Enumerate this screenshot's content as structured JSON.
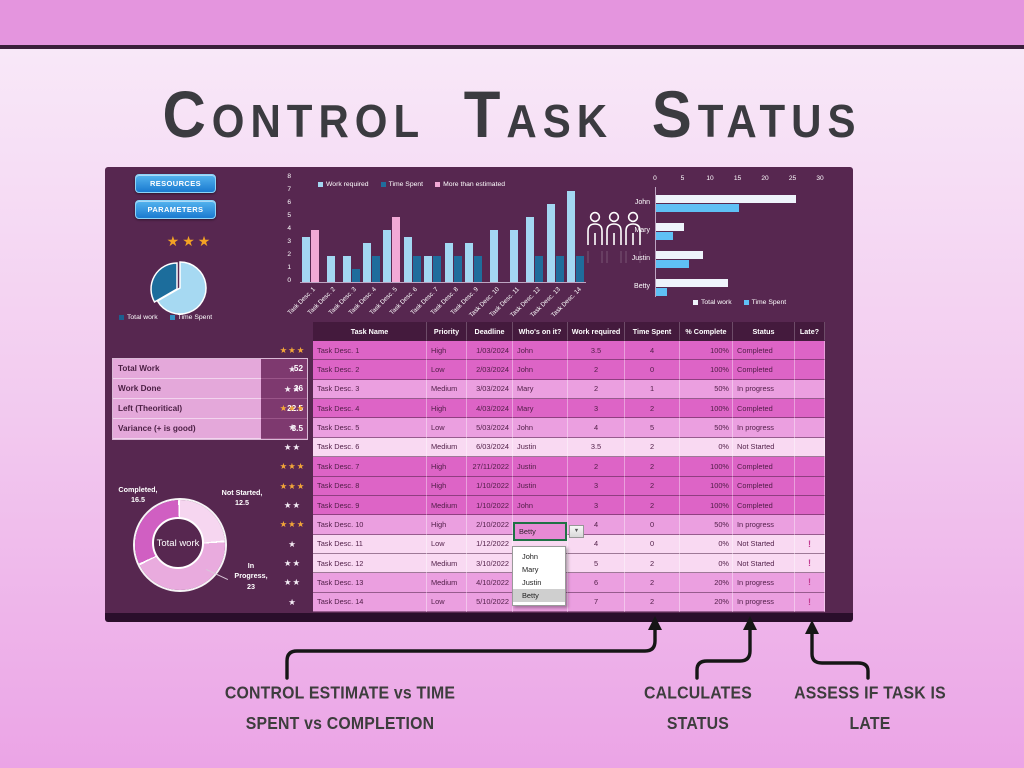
{
  "title": "Control Task Status",
  "buttons": {
    "resources": "RESOURCES",
    "parameters": "PARAMETERS"
  },
  "rating": {
    "stars": "★★★"
  },
  "status_colors": {
    "Completed": "#dd64c6",
    "In progress": "#eb9fe0",
    "Not Started": "#f9d9f2"
  },
  "late_mark": "!",
  "chart_data": [
    {
      "type": "pie",
      "name": "work-vs-time-pie",
      "labels": [
        "Total work",
        "Time Spent"
      ],
      "values": [
        52,
        26
      ],
      "slice_colors": [
        "#a6d9f2",
        "#1c6d9c"
      ],
      "legend": [
        {
          "label": "Total work",
          "color": "#1c5f8f"
        },
        {
          "label": "Time Spent",
          "color": "#3390c3"
        }
      ]
    },
    {
      "type": "bar",
      "name": "task-bars",
      "ylim": [
        0,
        8
      ],
      "yticks": [
        0,
        1,
        2,
        3,
        4,
        5,
        6,
        7,
        8
      ],
      "categories": [
        "Task Desc. 1",
        "Task Desc. 2",
        "Task Desc. 3",
        "Task Desc. 4",
        "Task Desc. 5",
        "Task Desc. 6",
        "Task Desc. 7",
        "Task Desc. 8",
        "Task Desc. 9",
        "Task Desc. 10",
        "Task Desc. 11",
        "Task Desc. 12",
        "Task Desc. 13",
        "Task Desc. 14"
      ],
      "series": [
        {
          "name": "Work required",
          "color": "#a3d7f2",
          "values": [
            3.5,
            2,
            2,
            3,
            4,
            3.5,
            2,
            3,
            3,
            4,
            4,
            5,
            6,
            7
          ]
        },
        {
          "name": "Time Spent",
          "color": "#1f6d9c",
          "values": [
            4,
            0,
            1,
            2,
            5,
            2,
            2,
            2,
            2,
            0,
            0,
            2,
            2,
            2
          ]
        },
        {
          "name": "More than estimated",
          "color": "#f2a9d6",
          "note": "time-spent bar shown pink when it exceeds work required"
        }
      ]
    },
    {
      "type": "bar",
      "name": "person-bars",
      "orientation": "horizontal",
      "xlim": [
        0,
        30
      ],
      "xticks": [
        0,
        5,
        10,
        15,
        20,
        25,
        30
      ],
      "categories": [
        "John",
        "Mary",
        "Justin",
        "Betty"
      ],
      "series": [
        {
          "name": "Total work",
          "color": "#eef3fb",
          "values": [
            25.5,
            5,
            8.5,
            13
          ]
        },
        {
          "name": "Time Spent",
          "color": "#5fc0f5",
          "values": [
            15,
            3,
            6,
            2
          ]
        }
      ]
    },
    {
      "type": "pie",
      "subtype": "donut",
      "name": "total-work-donut",
      "center_label": "Total work",
      "labels": [
        "Not Started",
        "In Progress",
        "Completed"
      ],
      "values": [
        12.5,
        23,
        16.5
      ],
      "slice_colors": [
        "#f6d6f0",
        "#e9abde",
        "#d05fc2"
      ],
      "callouts": {
        "completed": [
          "Completed,",
          "16.5"
        ],
        "not_started": [
          "Not Started,",
          "12.5"
        ],
        "in_progress": [
          "In",
          "Progress,",
          "23"
        ]
      }
    }
  ],
  "stats": {
    "rows": [
      {
        "label": "Total Work",
        "value": "52"
      },
      {
        "label": "Work Done",
        "value": "26"
      },
      {
        "label": "Left (Theoritical)",
        "value": "22.5"
      },
      {
        "label": "Variance (+ is good)",
        "value": "3.5"
      }
    ]
  },
  "table": {
    "headers": [
      "Task Name",
      "Priority",
      "Deadline",
      "Who's on it?",
      "Work required",
      "Time Spent",
      "% Complete",
      "Status",
      "Late?"
    ],
    "rows": [
      [
        "Task Desc. 1",
        "High",
        "1/03/2024",
        "John",
        "3.5",
        "4",
        "100%",
        "Completed",
        ""
      ],
      [
        "Task Desc. 2",
        "Low",
        "2/03/2024",
        "John",
        "2",
        "0",
        "100%",
        "Completed",
        ""
      ],
      [
        "Task Desc. 3",
        "Medium",
        "3/03/2024",
        "Mary",
        "2",
        "1",
        "50%",
        "In progress",
        ""
      ],
      [
        "Task Desc. 4",
        "High",
        "4/03/2024",
        "Mary",
        "3",
        "2",
        "100%",
        "Completed",
        ""
      ],
      [
        "Task Desc. 5",
        "Low",
        "5/03/2024",
        "John",
        "4",
        "5",
        "50%",
        "In progress",
        ""
      ],
      [
        "Task Desc. 6",
        "Medium",
        "6/03/2024",
        "Justin",
        "3.5",
        "2",
        "0%",
        "Not Started",
        ""
      ],
      [
        "Task Desc. 7",
        "High",
        "27/11/2022",
        "Justin",
        "2",
        "2",
        "100%",
        "Completed",
        ""
      ],
      [
        "Task Desc. 8",
        "High",
        "1/10/2022",
        "Justin",
        "3",
        "2",
        "100%",
        "Completed",
        ""
      ],
      [
        "Task Desc. 9",
        "Medium",
        "1/10/2022",
        "John",
        "3",
        "2",
        "100%",
        "Completed",
        ""
      ],
      [
        "Task Desc. 10",
        "High",
        "2/10/2022",
        "",
        "4",
        "0",
        "50%",
        "In progress",
        ""
      ],
      [
        "Task Desc. 11",
        "Low",
        "1/12/2022",
        "",
        "4",
        "0",
        "0%",
        "Not Started",
        "!"
      ],
      [
        "Task Desc. 12",
        "Medium",
        "3/10/2022",
        "",
        "5",
        "2",
        "0%",
        "Not Started",
        "!"
      ],
      [
        "Task Desc. 13",
        "Medium",
        "4/10/2022",
        "",
        "6",
        "2",
        "20%",
        "In progress",
        "!"
      ],
      [
        "Task Desc. 14",
        "Low",
        "5/10/2022",
        "John",
        "7",
        "2",
        "20%",
        "In progress",
        "!"
      ]
    ]
  },
  "priority_stars": {
    "High": {
      "count": 3,
      "gold": true
    },
    "Medium": {
      "count": 2,
      "gold": false
    },
    "Low": {
      "count": 1,
      "gold": false
    }
  },
  "dropdown": {
    "value": "Betty",
    "options": [
      "John",
      "Mary",
      "Justin",
      "Betty"
    ],
    "highlighted": "Betty"
  },
  "annotations": [
    {
      "lines": [
        "CONTROL ESTIMATE vs TIME",
        "SPENT vs COMPLETION"
      ]
    },
    {
      "lines": [
        "CALCULATES",
        "STATUS"
      ]
    },
    {
      "lines": [
        "ASSESS IF TASK IS",
        "LATE"
      ]
    }
  ]
}
